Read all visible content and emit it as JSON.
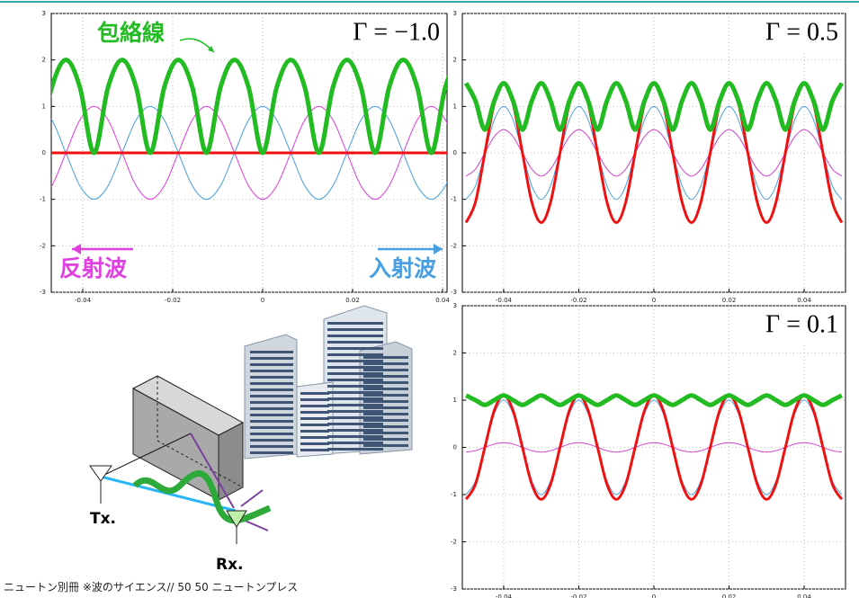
{
  "chart_data": [
    {
      "type": "line",
      "title": "Γ = −1.0",
      "x": [
        -0.05,
        -0.046875,
        -0.04375,
        -0.040625,
        -0.0375,
        -0.034375,
        -0.03125,
        -0.028125,
        -0.025,
        -0.021875,
        -0.01875,
        -0.015625,
        -0.0125,
        -0.009375,
        -0.00625,
        -0.003125,
        0,
        0.003125,
        0.00625,
        0.009375,
        0.0125,
        0.015625,
        0.01875,
        0.021875,
        0.025,
        0.028125,
        0.03125,
        0.034375,
        0.0375,
        0.040625,
        0.04375,
        0.046875,
        0.05
      ],
      "series": [
        {
          "name": "入射波",
          "color": "#4a9fe0",
          "values": [
            1,
            0.71,
            0,
            -0.71,
            -1,
            -0.71,
            0,
            0.71,
            1,
            0.71,
            0,
            -0.71,
            -1,
            -0.71,
            0,
            0.71,
            1,
            0.71,
            0,
            -0.71,
            -1,
            -0.71,
            0,
            0.71,
            1,
            0.71,
            0,
            -0.71,
            -1,
            -0.71,
            0,
            0.71,
            1
          ]
        },
        {
          "name": "反射波",
          "color": "#e040e0",
          "values": [
            -1,
            -0.71,
            0,
            0.71,
            1,
            0.71,
            0,
            -0.71,
            -1,
            -0.71,
            0,
            0.71,
            1,
            0.71,
            0,
            -0.71,
            -1,
            -0.71,
            0,
            0.71,
            1,
            0.71,
            0,
            -0.71,
            -1,
            -0.71,
            0,
            0.71,
            1,
            0.71,
            0,
            -0.71,
            -1
          ]
        },
        {
          "color": "#ee1111",
          "values": [
            0,
            0,
            0,
            0,
            0,
            0,
            0,
            0,
            0,
            0,
            0,
            0,
            0,
            0,
            0,
            0,
            0,
            0,
            0,
            0,
            0,
            0,
            0,
            0,
            0,
            0,
            0,
            0,
            0,
            0,
            0,
            0,
            0
          ]
        },
        {
          "name": "包絡線",
          "color": "#22bb22",
          "values": [
            0,
            1.41,
            2,
            1.41,
            0,
            1.41,
            2,
            1.41,
            0,
            1.41,
            2,
            1.41,
            0,
            1.41,
            2,
            1.41,
            0,
            1.41,
            2,
            1.41,
            0,
            1.41,
            2,
            1.41,
            0,
            1.41,
            2,
            1.41,
            0,
            1.41,
            2,
            1.41,
            0
          ]
        }
      ],
      "xlim": [
        -0.047,
        0.041
      ],
      "ylim": [
        -3,
        3
      ],
      "xticks": [
        -0.04,
        -0.02,
        0,
        0.02,
        0.04
      ],
      "yticks": [
        -3,
        -2,
        -1,
        0,
        1,
        2,
        3
      ],
      "grid": true
    },
    {
      "type": "line",
      "title": "Γ = 0.5",
      "x": [
        -0.05,
        -0.0475,
        -0.045,
        -0.0425,
        -0.04,
        -0.0375,
        -0.035,
        -0.0325,
        -0.03,
        -0.0275,
        -0.025,
        -0.0225,
        -0.02,
        -0.0175,
        -0.015,
        -0.0125,
        -0.01,
        -0.0075,
        -0.005,
        -0.0025,
        0,
        0.0025,
        0.005,
        0.0075,
        0.01,
        0.0125,
        0.015,
        0.0175,
        0.02,
        0.0225,
        0.025,
        0.0275,
        0.03,
        0.0325,
        0.035,
        0.0375,
        0.04,
        0.0425,
        0.045,
        0.0475,
        0.05
      ],
      "series": [
        {
          "color": "#4a9fe0",
          "values": [
            -1,
            -0.71,
            0,
            0.71,
            1,
            0.71,
            0,
            -0.71,
            -1,
            -0.71,
            0,
            0.71,
            1,
            0.71,
            0,
            -0.71,
            -1,
            -0.71,
            0,
            0.71,
            1,
            0.71,
            0,
            -0.71,
            -1,
            -0.71,
            0,
            0.71,
            1,
            0.71,
            0,
            -0.71,
            -1,
            -0.71,
            0,
            0.71,
            1,
            0.71,
            0,
            -0.71,
            -1
          ]
        },
        {
          "color": "#d040d0",
          "values": [
            -0.5,
            -0.35,
            0,
            0.35,
            0.5,
            0.35,
            0,
            -0.35,
            -0.5,
            -0.35,
            0,
            0.35,
            0.5,
            0.35,
            0,
            -0.35,
            -0.5,
            -0.35,
            0,
            0.35,
            0.5,
            0.35,
            0,
            -0.35,
            -0.5,
            -0.35,
            0,
            0.35,
            0.5,
            0.35,
            0,
            -0.35,
            -0.5,
            -0.35,
            0,
            0.35,
            0.5,
            0.35,
            0,
            -0.35,
            -0.5
          ]
        },
        {
          "color": "#ee1111",
          "values": [
            -1.5,
            -1.06,
            0,
            1.06,
            1.5,
            1.06,
            0,
            -1.06,
            -1.5,
            -1.06,
            0,
            1.06,
            1.5,
            1.06,
            0,
            -1.06,
            -1.5,
            -1.06,
            0,
            1.06,
            1.5,
            1.06,
            0,
            -1.06,
            -1.5,
            -1.06,
            0,
            1.06,
            1.5,
            1.06,
            0,
            -1.06,
            -1.5,
            -1.06,
            0,
            1.06,
            1.5,
            1.06,
            0,
            -1.06,
            -1.5
          ]
        },
        {
          "color": "#22bb22",
          "values": [
            1.5,
            1.12,
            0.5,
            1.12,
            1.5,
            1.12,
            0.5,
            1.12,
            1.5,
            1.12,
            0.5,
            1.12,
            1.5,
            1.12,
            0.5,
            1.12,
            1.5,
            1.12,
            0.5,
            1.12,
            1.5,
            1.12,
            0.5,
            1.12,
            1.5,
            1.12,
            0.5,
            1.12,
            1.5,
            1.12,
            0.5,
            1.12,
            1.5,
            1.12,
            0.5,
            1.12,
            1.5,
            1.12,
            0.5,
            1.12,
            1.5
          ]
        }
      ],
      "xlim": [
        -0.051,
        0.051
      ],
      "ylim": [
        -3,
        3
      ],
      "xticks": [
        -0.04,
        -0.02,
        0,
        0.02,
        0.04
      ],
      "yticks": [
        -3,
        -2,
        -1,
        0,
        1,
        2,
        3
      ],
      "grid": true
    },
    {
      "type": "line",
      "title": "Γ = 0.1",
      "x": [
        -0.05,
        -0.0475,
        -0.045,
        -0.0425,
        -0.04,
        -0.0375,
        -0.035,
        -0.0325,
        -0.03,
        -0.0275,
        -0.025,
        -0.0225,
        -0.02,
        -0.0175,
        -0.015,
        -0.0125,
        -0.01,
        -0.0075,
        -0.005,
        -0.0025,
        0,
        0.0025,
        0.005,
        0.0075,
        0.01,
        0.0125,
        0.015,
        0.0175,
        0.02,
        0.0225,
        0.025,
        0.0275,
        0.03,
        0.0325,
        0.035,
        0.0375,
        0.04,
        0.0425,
        0.045,
        0.0475,
        0.05
      ],
      "series": [
        {
          "color": "#4a9fe0",
          "values": [
            -1,
            -0.71,
            0,
            0.71,
            1,
            0.71,
            0,
            -0.71,
            -1,
            -0.71,
            0,
            0.71,
            1,
            0.71,
            0,
            -0.71,
            -1,
            -0.71,
            0,
            0.71,
            1,
            0.71,
            0,
            -0.71,
            -1,
            -0.71,
            0,
            0.71,
            1,
            0.71,
            0,
            -0.71,
            -1,
            -0.71,
            0,
            0.71,
            1,
            0.71,
            0,
            -0.71,
            -1
          ]
        },
        {
          "color": "#d040d0",
          "values": [
            -0.1,
            -0.07,
            0,
            0.07,
            0.1,
            0.07,
            0,
            -0.07,
            -0.1,
            -0.07,
            0,
            0.07,
            0.1,
            0.07,
            0,
            -0.07,
            -0.1,
            -0.07,
            0,
            0.07,
            0.1,
            0.07,
            0,
            -0.07,
            -0.1,
            -0.07,
            0,
            0.07,
            0.1,
            0.07,
            0,
            -0.07,
            -0.1,
            -0.07,
            0,
            0.07,
            0.1,
            0.07,
            0,
            -0.07,
            -0.1
          ]
        },
        {
          "color": "#ee1111",
          "values": [
            -1.1,
            -0.78,
            0,
            0.78,
            1.1,
            0.78,
            0,
            -0.78,
            -1.1,
            -0.78,
            0,
            0.78,
            1.1,
            0.78,
            0,
            -0.78,
            -1.1,
            -0.78,
            0,
            0.78,
            1.1,
            0.78,
            0,
            -0.78,
            -1.1,
            -0.78,
            0,
            0.78,
            1.1,
            0.78,
            0,
            -0.78,
            -1.1,
            -0.78,
            0,
            0.78,
            1.1,
            0.78,
            0,
            -0.78,
            -1.1
          ]
        },
        {
          "color": "#22bb22",
          "values": [
            1.1,
            1.0,
            0.9,
            1.0,
            1.1,
            1.0,
            0.9,
            1.0,
            1.1,
            1.0,
            0.9,
            1.0,
            1.1,
            1.0,
            0.9,
            1.0,
            1.1,
            1.0,
            0.9,
            1.0,
            1.1,
            1.0,
            0.9,
            1.0,
            1.1,
            1.0,
            0.9,
            1.0,
            1.1,
            1.0,
            0.9,
            1.0,
            1.1,
            1.0,
            0.9,
            1.0,
            1.1,
            1.0,
            0.9,
            1.0,
            1.1
          ]
        }
      ],
      "xlim": [
        -0.051,
        0.051
      ],
      "ylim": [
        -3,
        3
      ],
      "xticks": [
        -0.04,
        -0.02,
        0,
        0.02,
        0.04
      ],
      "yticks": [
        -3,
        -2,
        -1,
        0,
        1,
        2,
        3
      ],
      "grid": true
    }
  ],
  "illustration": {
    "tx": "Tx.",
    "rx": "Rx."
  },
  "caption": "ニュートン別冊 ※波のサイエンス// 50 50 ニュートンプレス"
}
